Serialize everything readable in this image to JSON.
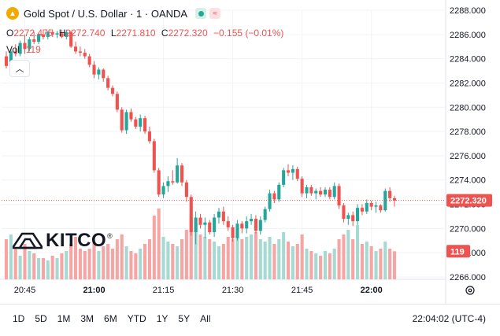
{
  "header": {
    "symbol_icon": "gold-coin-icon",
    "symbol_name": "Gold Spot / U.S. Dollar · 1 · OANDA",
    "ohlc": {
      "o_label": "O",
      "o_value": "2272.475",
      "h_label": "H",
      "h_value": "2272.740",
      "l_label": "L",
      "l_value": "2271.810",
      "c_label": "C",
      "c_value": "2272.320",
      "change": "−0.155 (−0.01%)"
    },
    "volume_label": "Vol",
    "volume_value": "119",
    "collapse_icon": "chevron-up-icon"
  },
  "logo": {
    "text": "KITCO",
    "mark": "®"
  },
  "range_buttons": [
    "1D",
    "5D",
    "1M",
    "3M",
    "6M",
    "YTD",
    "1Y",
    "5Y",
    "All"
  ],
  "clock": "22:04:02 (UTC-4)",
  "colors": {
    "up": "#26a69a",
    "down": "#ef5350",
    "vol_up": "#a7d9d3",
    "vol_down": "#f5a6a4"
  },
  "chart_data": {
    "type": "candlestick",
    "title": "Gold Spot / U.S. Dollar · 1 · OANDA",
    "y_ticks": [
      "2288.000",
      "2286.000",
      "2284.000",
      "2282.000",
      "2280.000",
      "2278.000",
      "2276.000",
      "2274.000",
      "2272.000",
      "2270.000",
      "2268.000",
      "2266.000"
    ],
    "ylim": [
      2266.0,
      2288.0
    ],
    "x_ticks": [
      "20:45",
      "21:00",
      "21:15",
      "21:30",
      "21:45",
      "22:00"
    ],
    "last_price": "2272.320",
    "last_volume": "119",
    "volume_max": 300,
    "candles": [
      {
        "o": 2284.2,
        "h": 2284.6,
        "l": 2283.2,
        "c": 2283.4,
        "v": 170
      },
      {
        "o": 2283.4,
        "h": 2284.8,
        "l": 2283.2,
        "c": 2284.6,
        "v": 190
      },
      {
        "o": 2284.6,
        "h": 2285.2,
        "l": 2284.2,
        "c": 2284.4,
        "v": 130
      },
      {
        "o": 2284.4,
        "h": 2285.5,
        "l": 2284.2,
        "c": 2285.3,
        "v": 100
      },
      {
        "o": 2285.3,
        "h": 2286.0,
        "l": 2284.4,
        "c": 2284.8,
        "v": 150
      },
      {
        "o": 2284.8,
        "h": 2285.8,
        "l": 2284.6,
        "c": 2285.6,
        "v": 120
      },
      {
        "o": 2285.6,
        "h": 2286.2,
        "l": 2285.2,
        "c": 2285.4,
        "v": 110
      },
      {
        "o": 2285.4,
        "h": 2286.1,
        "l": 2285.2,
        "c": 2286.0,
        "v": 90
      },
      {
        "o": 2286.0,
        "h": 2286.4,
        "l": 2285.6,
        "c": 2285.8,
        "v": 90
      },
      {
        "o": 2285.8,
        "h": 2286.3,
        "l": 2285.6,
        "c": 2286.2,
        "v": 80
      },
      {
        "o": 2286.2,
        "h": 2286.4,
        "l": 2285.8,
        "c": 2286.0,
        "v": 100
      },
      {
        "o": 2286.0,
        "h": 2286.3,
        "l": 2285.7,
        "c": 2286.1,
        "v": 90
      },
      {
        "o": 2286.1,
        "h": 2286.4,
        "l": 2285.7,
        "c": 2285.8,
        "v": 110
      },
      {
        "o": 2285.8,
        "h": 2286.4,
        "l": 2285.6,
        "c": 2286.2,
        "v": 120
      },
      {
        "o": 2286.2,
        "h": 2286.3,
        "l": 2284.9,
        "c": 2285.0,
        "v": 150
      },
      {
        "o": 2285.0,
        "h": 2285.4,
        "l": 2284.4,
        "c": 2284.6,
        "v": 180
      },
      {
        "o": 2284.6,
        "h": 2285.0,
        "l": 2284.2,
        "c": 2284.5,
        "v": 130
      },
      {
        "o": 2284.5,
        "h": 2284.8,
        "l": 2284.0,
        "c": 2284.2,
        "v": 120
      },
      {
        "o": 2284.2,
        "h": 2284.4,
        "l": 2283.3,
        "c": 2283.5,
        "v": 130
      },
      {
        "o": 2283.5,
        "h": 2283.8,
        "l": 2282.4,
        "c": 2282.7,
        "v": 160
      },
      {
        "o": 2282.7,
        "h": 2283.3,
        "l": 2282.3,
        "c": 2283.1,
        "v": 120
      },
      {
        "o": 2283.1,
        "h": 2283.2,
        "l": 2282.1,
        "c": 2282.4,
        "v": 140
      },
      {
        "o": 2282.4,
        "h": 2282.6,
        "l": 2281.4,
        "c": 2281.6,
        "v": 150
      },
      {
        "o": 2281.6,
        "h": 2281.8,
        "l": 2280.9,
        "c": 2281.1,
        "v": 130
      },
      {
        "o": 2281.1,
        "h": 2281.3,
        "l": 2279.6,
        "c": 2279.8,
        "v": 170
      },
      {
        "o": 2279.8,
        "h": 2280.0,
        "l": 2277.9,
        "c": 2278.1,
        "v": 190
      },
      {
        "o": 2278.1,
        "h": 2279.8,
        "l": 2277.8,
        "c": 2279.6,
        "v": 140
      },
      {
        "o": 2279.6,
        "h": 2279.9,
        "l": 2278.8,
        "c": 2279.0,
        "v": 120
      },
      {
        "o": 2279.0,
        "h": 2279.2,
        "l": 2278.2,
        "c": 2278.4,
        "v": 110
      },
      {
        "o": 2278.4,
        "h": 2279.4,
        "l": 2278.0,
        "c": 2279.1,
        "v": 130
      },
      {
        "o": 2279.1,
        "h": 2279.3,
        "l": 2277.8,
        "c": 2278.0,
        "v": 150
      },
      {
        "o": 2278.0,
        "h": 2278.4,
        "l": 2277.0,
        "c": 2277.2,
        "v": 170
      },
      {
        "o": 2277.2,
        "h": 2277.4,
        "l": 2274.6,
        "c": 2274.8,
        "v": 270
      },
      {
        "o": 2274.8,
        "h": 2275.0,
        "l": 2272.6,
        "c": 2272.8,
        "v": 300
      },
      {
        "o": 2272.8,
        "h": 2273.8,
        "l": 2272.5,
        "c": 2273.5,
        "v": 180
      },
      {
        "o": 2273.5,
        "h": 2274.3,
        "l": 2273.0,
        "c": 2273.9,
        "v": 160
      },
      {
        "o": 2273.9,
        "h": 2274.8,
        "l": 2273.6,
        "c": 2273.8,
        "v": 150
      },
      {
        "o": 2273.8,
        "h": 2275.8,
        "l": 2273.7,
        "c": 2275.2,
        "v": 140
      },
      {
        "o": 2275.2,
        "h": 2275.4,
        "l": 2273.5,
        "c": 2273.8,
        "v": 170
      },
      {
        "o": 2273.8,
        "h": 2274.0,
        "l": 2272.2,
        "c": 2272.6,
        "v": 210
      },
      {
        "o": 2272.6,
        "h": 2272.8,
        "l": 2269.4,
        "c": 2269.7,
        "v": 260
      },
      {
        "o": 2269.7,
        "h": 2271.4,
        "l": 2268.7,
        "c": 2270.9,
        "v": 240
      },
      {
        "o": 2270.9,
        "h": 2271.2,
        "l": 2270.0,
        "c": 2270.3,
        "v": 190
      },
      {
        "o": 2270.3,
        "h": 2270.9,
        "l": 2269.2,
        "c": 2270.5,
        "v": 180
      },
      {
        "o": 2270.5,
        "h": 2270.7,
        "l": 2269.5,
        "c": 2269.7,
        "v": 170
      },
      {
        "o": 2269.7,
        "h": 2271.2,
        "l": 2269.3,
        "c": 2270.9,
        "v": 160
      },
      {
        "o": 2270.9,
        "h": 2271.7,
        "l": 2270.4,
        "c": 2271.4,
        "v": 140
      },
      {
        "o": 2271.4,
        "h": 2271.8,
        "l": 2270.3,
        "c": 2270.6,
        "v": 150
      },
      {
        "o": 2270.6,
        "h": 2271.0,
        "l": 2269.8,
        "c": 2270.1,
        "v": 180
      },
      {
        "o": 2270.1,
        "h": 2270.3,
        "l": 2268.9,
        "c": 2269.2,
        "v": 170
      },
      {
        "o": 2269.2,
        "h": 2270.7,
        "l": 2269.0,
        "c": 2270.4,
        "v": 200
      },
      {
        "o": 2270.4,
        "h": 2270.6,
        "l": 2269.6,
        "c": 2270.0,
        "v": 170
      },
      {
        "o": 2270.0,
        "h": 2271.0,
        "l": 2269.6,
        "c": 2270.6,
        "v": 180
      },
      {
        "o": 2270.6,
        "h": 2271.2,
        "l": 2270.3,
        "c": 2270.8,
        "v": 190
      },
      {
        "o": 2270.8,
        "h": 2271.1,
        "l": 2269.6,
        "c": 2269.8,
        "v": 200
      },
      {
        "o": 2269.8,
        "h": 2271.0,
        "l": 2269.5,
        "c": 2270.7,
        "v": 170
      },
      {
        "o": 2270.7,
        "h": 2271.8,
        "l": 2270.5,
        "c": 2271.6,
        "v": 160
      },
      {
        "o": 2271.6,
        "h": 2273.2,
        "l": 2271.4,
        "c": 2272.9,
        "v": 180
      },
      {
        "o": 2272.9,
        "h": 2273.1,
        "l": 2272.1,
        "c": 2272.4,
        "v": 150
      },
      {
        "o": 2272.4,
        "h": 2273.8,
        "l": 2272.2,
        "c": 2273.6,
        "v": 170
      },
      {
        "o": 2273.6,
        "h": 2275.0,
        "l": 2273.4,
        "c": 2274.8,
        "v": 200
      },
      {
        "o": 2274.8,
        "h": 2275.3,
        "l": 2274.3,
        "c": 2274.6,
        "v": 160
      },
      {
        "o": 2274.6,
        "h": 2275.2,
        "l": 2274.0,
        "c": 2274.9,
        "v": 140
      },
      {
        "o": 2274.9,
        "h": 2275.1,
        "l": 2273.9,
        "c": 2274.1,
        "v": 150
      },
      {
        "o": 2274.1,
        "h": 2274.3,
        "l": 2272.6,
        "c": 2272.9,
        "v": 190
      },
      {
        "o": 2272.9,
        "h": 2273.6,
        "l": 2272.5,
        "c": 2273.4,
        "v": 130
      },
      {
        "o": 2273.4,
        "h": 2273.6,
        "l": 2272.7,
        "c": 2272.9,
        "v": 120
      },
      {
        "o": 2272.9,
        "h": 2273.3,
        "l": 2272.4,
        "c": 2273.1,
        "v": 110
      },
      {
        "o": 2273.1,
        "h": 2273.4,
        "l": 2272.6,
        "c": 2272.8,
        "v": 100
      },
      {
        "o": 2272.8,
        "h": 2273.4,
        "l": 2272.6,
        "c": 2273.2,
        "v": 120
      },
      {
        "o": 2273.2,
        "h": 2273.4,
        "l": 2272.4,
        "c": 2272.6,
        "v": 110
      },
      {
        "o": 2272.6,
        "h": 2273.8,
        "l": 2272.4,
        "c": 2273.5,
        "v": 130
      },
      {
        "o": 2273.5,
        "h": 2273.7,
        "l": 2271.6,
        "c": 2271.9,
        "v": 170
      },
      {
        "o": 2271.9,
        "h": 2272.1,
        "l": 2270.5,
        "c": 2270.8,
        "v": 190
      },
      {
        "o": 2270.8,
        "h": 2271.3,
        "l": 2270.3,
        "c": 2271.1,
        "v": 210
      },
      {
        "o": 2271.1,
        "h": 2271.4,
        "l": 2270.2,
        "c": 2270.6,
        "v": 170
      },
      {
        "o": 2270.6,
        "h": 2272.0,
        "l": 2270.3,
        "c": 2271.7,
        "v": 230
      },
      {
        "o": 2271.7,
        "h": 2272.0,
        "l": 2271.1,
        "c": 2271.4,
        "v": 150
      },
      {
        "o": 2271.4,
        "h": 2272.4,
        "l": 2271.2,
        "c": 2272.1,
        "v": 160
      },
      {
        "o": 2272.1,
        "h": 2272.3,
        "l": 2271.5,
        "c": 2271.8,
        "v": 140
      },
      {
        "o": 2271.8,
        "h": 2272.2,
        "l": 2271.3,
        "c": 2271.9,
        "v": 120
      },
      {
        "o": 2271.9,
        "h": 2272.0,
        "l": 2271.3,
        "c": 2271.5,
        "v": 130
      },
      {
        "o": 2271.5,
        "h": 2273.3,
        "l": 2271.4,
        "c": 2273.1,
        "v": 160
      },
      {
        "o": 2273.1,
        "h": 2273.4,
        "l": 2272.2,
        "c": 2272.5,
        "v": 130
      },
      {
        "o": 2272.5,
        "h": 2272.7,
        "l": 2271.8,
        "c": 2272.3,
        "v": 119
      }
    ]
  }
}
